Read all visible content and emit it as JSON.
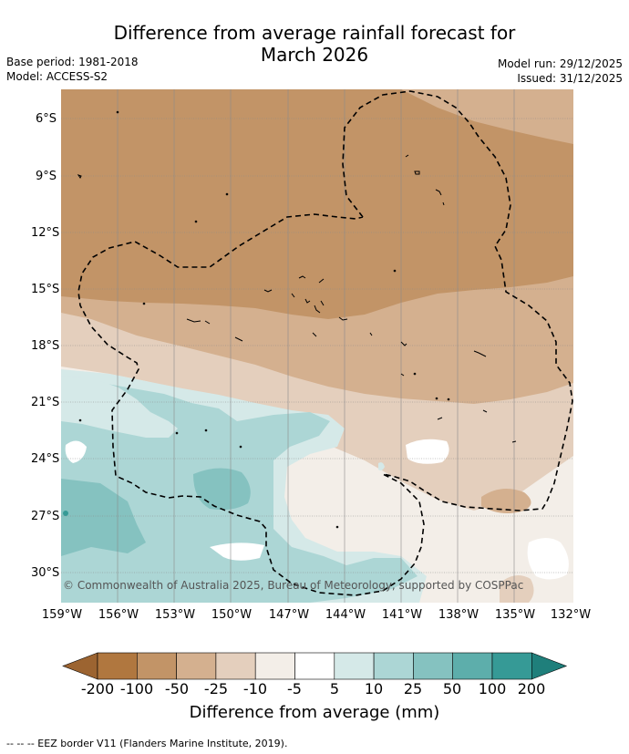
{
  "title_line1": "Difference from average rainfall forecast for",
  "title_line2": "March 2026",
  "base_period": "Base period: 1981-2018",
  "model": "Model: ACCESS-S2",
  "model_run": "Model run: 29/12/2025",
  "issued": "Issued: 31/12/2025",
  "copyright": "© Commonwealth of Australia 2025, Bureau of Meteorology, supported by COSPPac",
  "lat_labels": [
    "6°S",
    "9°S",
    "12°S",
    "15°S",
    "18°S",
    "21°S",
    "24°S",
    "27°S",
    "30°S"
  ],
  "lon_labels": [
    "159°W",
    "156°W",
    "153°W",
    "150°W",
    "147°W",
    "144°W",
    "141°W",
    "138°W",
    "135°W",
    "132°W"
  ],
  "colorbar": {
    "title": "Difference from average (mm)",
    "ticks": [
      "-200",
      "-100",
      "-50",
      "-25",
      "-10",
      "-5",
      "5",
      "10",
      "25",
      "50",
      "100",
      "200"
    ],
    "colors": [
      "#9c6431",
      "#b0773f",
      "#c29467",
      "#d4b08f",
      "#e4cfbd",
      "#f3eee8",
      "#ffffff",
      "#d5e9e8",
      "#acd6d5",
      "#85c2c0",
      "#5daeab",
      "#369a96",
      "#1f7f7b"
    ]
  },
  "footnote": "--  --  -- EEZ border V11 (Flanders Marine Institute, 2019)."
}
